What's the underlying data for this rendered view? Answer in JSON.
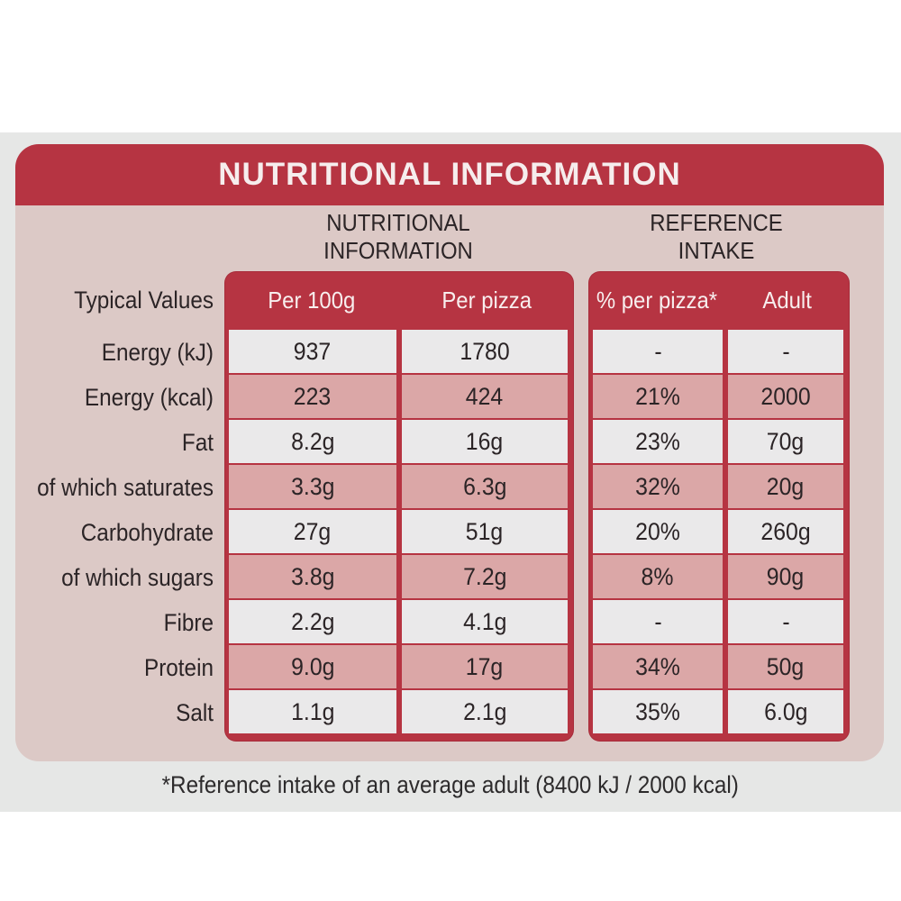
{
  "panel": {
    "title": "NUTRITIONAL INFORMATION",
    "group_nutritional": {
      "line1": "NUTRITIONAL",
      "line2": "INFORMATION"
    },
    "group_reference": {
      "line1": "REFERENCE",
      "line2": "INTAKE"
    }
  },
  "table": {
    "row_header_label": "Typical Values",
    "columns": [
      "Per 100g",
      "Per pizza",
      "% per pizza*",
      "Adult"
    ],
    "rows": [
      {
        "label": "Energy (kJ)",
        "per100g": "937",
        "perpizza": "1780",
        "pct": "-",
        "adult": "-"
      },
      {
        "label": "Energy (kcal)",
        "per100g": "223",
        "perpizza": "424",
        "pct": "21%",
        "adult": "2000"
      },
      {
        "label": "Fat",
        "per100g": "8.2g",
        "perpizza": "16g",
        "pct": "23%",
        "adult": "70g"
      },
      {
        "label": "of which saturates",
        "per100g": "3.3g",
        "perpizza": "6.3g",
        "pct": "32%",
        "adult": "20g"
      },
      {
        "label": "Carbohydrate",
        "per100g": "27g",
        "perpizza": "51g",
        "pct": "20%",
        "adult": "260g"
      },
      {
        "label": "of which sugars",
        "per100g": "3.8g",
        "perpizza": "7.2g",
        "pct": "8%",
        "adult": "90g"
      },
      {
        "label": "Fibre",
        "per100g": "2.2g",
        "perpizza": "4.1g",
        "pct": "-",
        "adult": "-"
      },
      {
        "label": "Protein",
        "per100g": "9.0g",
        "perpizza": "17g",
        "pct": "34%",
        "adult": "50g"
      },
      {
        "label": "Salt",
        "per100g": "1.1g",
        "perpizza": "2.1g",
        "pct": "35%",
        "adult": "6.0g"
      }
    ]
  },
  "footnote": "*Reference intake of an average adult (8400 kJ / 2000 kcal)",
  "colors": {
    "header_red": "#b63442",
    "row_pink": "#dba7a7",
    "row_white": "#eae9ea",
    "panel_pink": "#dcc9c6"
  }
}
